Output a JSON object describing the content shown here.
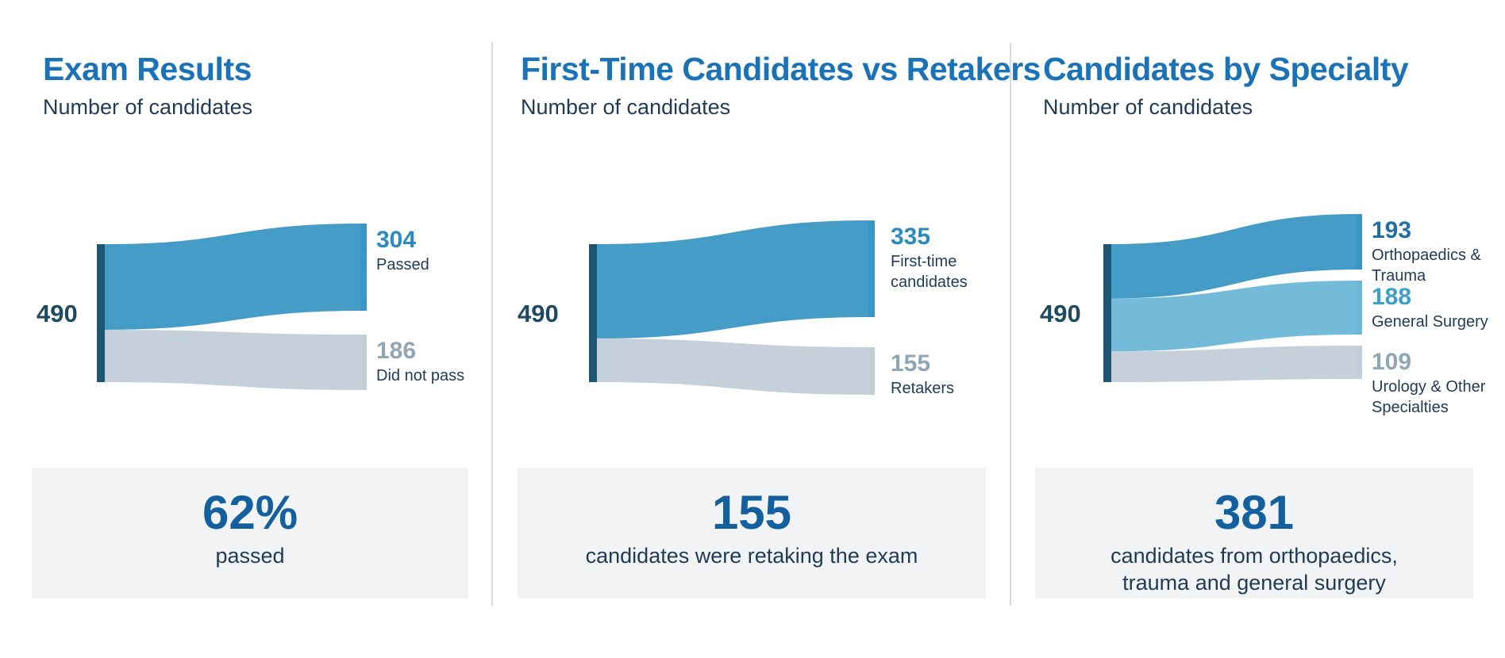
{
  "chart_data": [
    {
      "type": "sankey",
      "title": "Exam Results",
      "subtitle": "Number of candidates",
      "total": 490,
      "flows": [
        {
          "value": 304,
          "label": "Passed",
          "color": "#3a97c4",
          "value_color": "#2a8bc0"
        },
        {
          "value": 186,
          "label": "Did not pass",
          "color": "#c2ced8",
          "value_color": "#8fa6b7"
        }
      ],
      "stat": {
        "value": "62%",
        "text": "passed"
      }
    },
    {
      "type": "sankey",
      "title": "First-Time Candidates vs Retakers",
      "subtitle": "Number of candidates",
      "total": 490,
      "flows": [
        {
          "value": 335,
          "label": "First-time\ncandidates",
          "color": "#3a97c4",
          "value_color": "#2a8bc0"
        },
        {
          "value": 155,
          "label": "Retakers",
          "color": "#c2ced8",
          "value_color": "#8fa6b7"
        }
      ],
      "stat": {
        "value": "155",
        "text": "candidates were retaking the exam"
      }
    },
    {
      "type": "sankey",
      "title": "Candidates by Specialty",
      "subtitle": "Number of candidates",
      "total": 490,
      "flows": [
        {
          "value": 193,
          "label": "Orthopaedics &\nTrauma",
          "color": "#3a97c4",
          "value_color": "#1f6fa8"
        },
        {
          "value": 188,
          "label": "General Surgery",
          "color": "#6db7d8",
          "value_color": "#3b9fcc"
        },
        {
          "value": 109,
          "label": "Urology & Other\nSpecialties",
          "color": "#c2ced8",
          "value_color": "#8fa6b7"
        }
      ],
      "stat": {
        "value": "381",
        "text": "candidates from orthopaedics,\ntrauma and general surgery"
      }
    }
  ],
  "colors": {
    "title": "#1a73b8",
    "source_bar": "#1d5673",
    "stat_value": "#14609e",
    "stat_box": "#f1f3f5"
  }
}
